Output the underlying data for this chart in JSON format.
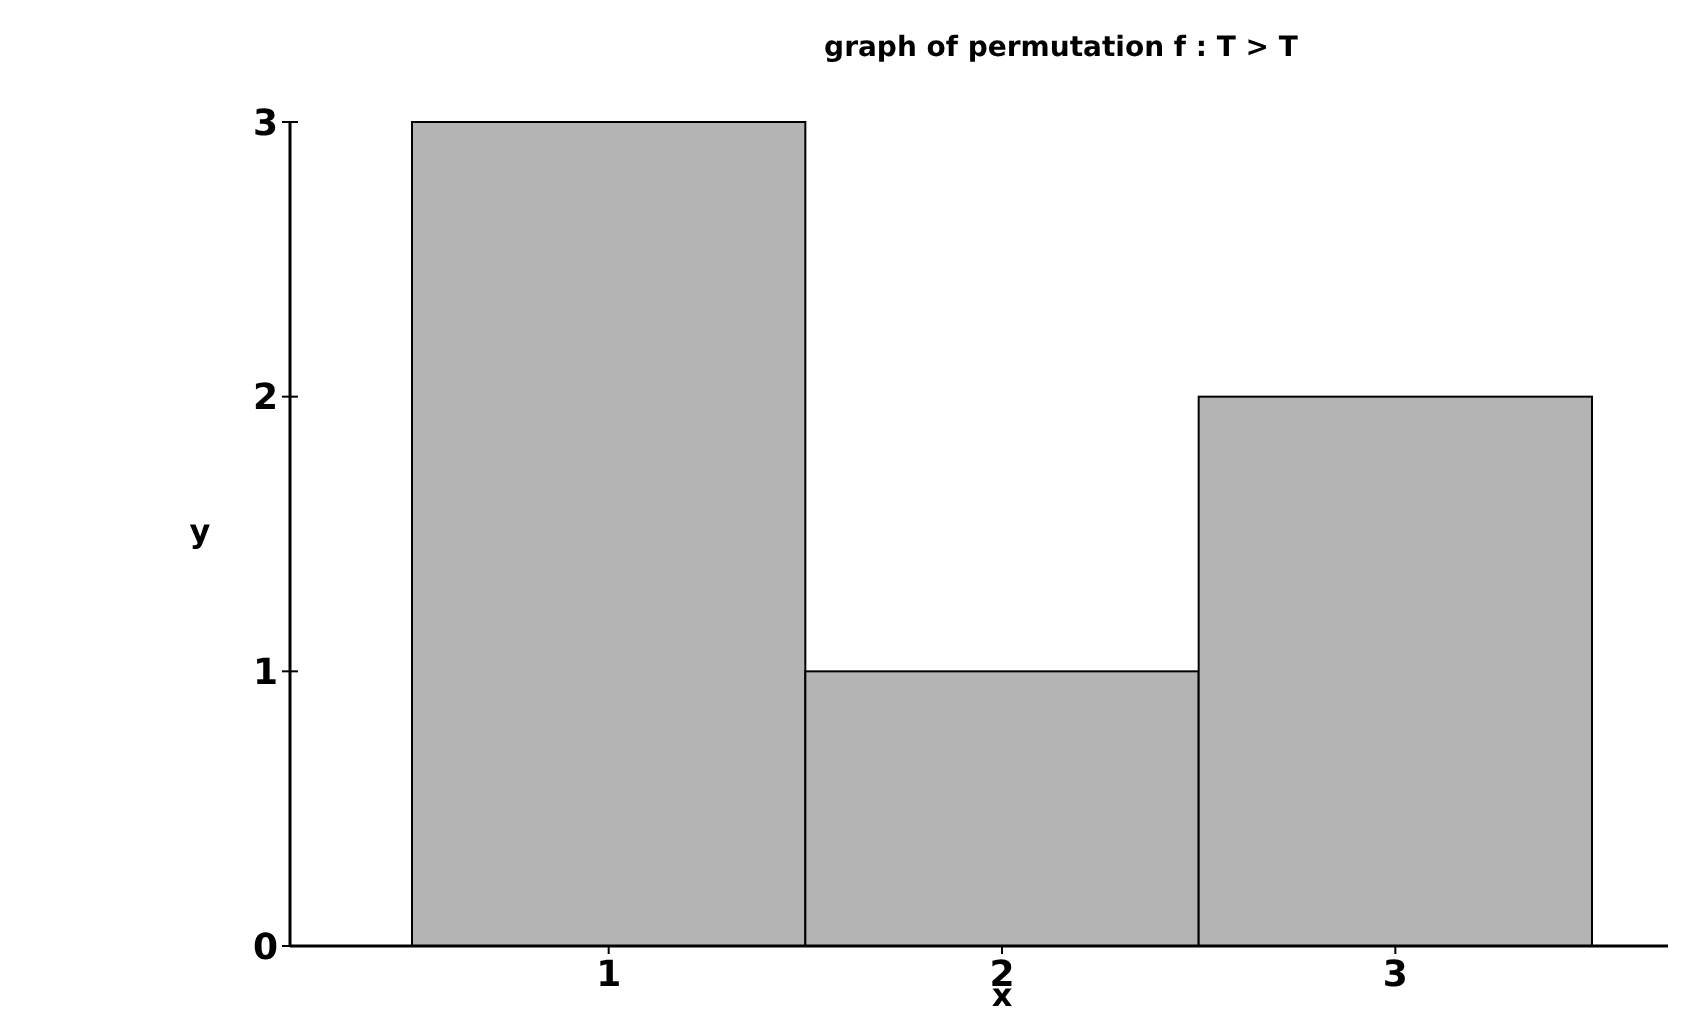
{
  "chart_data": {
    "type": "bar",
    "title": "graph of permutation f : T > T",
    "xlabel": "x",
    "ylabel": "y",
    "categories": [
      "1",
      "2",
      "3"
    ],
    "values": [
      3,
      1,
      2
    ],
    "color": "#b4b4b4",
    "ylim": [
      0,
      3
    ],
    "yticks": [
      0,
      1,
      2,
      3
    ],
    "grid": false
  }
}
